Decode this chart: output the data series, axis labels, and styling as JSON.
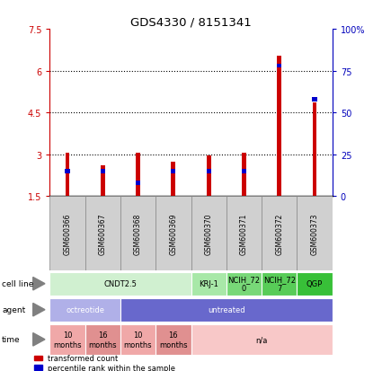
{
  "title": "GDS4330 / 8151341",
  "samples": [
    "GSM600366",
    "GSM600367",
    "GSM600368",
    "GSM600369",
    "GSM600370",
    "GSM600371",
    "GSM600372",
    "GSM600373"
  ],
  "transformed_counts": [
    3.05,
    2.6,
    3.05,
    2.75,
    2.95,
    3.05,
    6.55,
    4.85
  ],
  "percentile_ranks": [
    15,
    15,
    8,
    15,
    15,
    15,
    78,
    58
  ],
  "ylim_left": [
    1.5,
    7.5
  ],
  "ylim_right": [
    0,
    100
  ],
  "yticks_left": [
    1.5,
    3.0,
    4.5,
    6.0,
    7.5
  ],
  "yticks_right": [
    0,
    25,
    50,
    75,
    100
  ],
  "ytick_labels_left": [
    "1.5",
    "3",
    "4.5",
    "6",
    "7.5"
  ],
  "ytick_labels_right": [
    "0",
    "25",
    "50",
    "75",
    "100%"
  ],
  "left_axis_color": "#cc0000",
  "right_axis_color": "#0000bb",
  "bar_color_red": "#cc0000",
  "bar_color_blue": "#0000cc",
  "bar_bottom": 1.5,
  "grid_lines": [
    3.0,
    4.5,
    6.0
  ],
  "bar_width": 0.12,
  "cell_line_label": "cell line",
  "agent_label": "agent",
  "time_label": "time",
  "cell_lines": [
    {
      "text": "CNDT2.5",
      "start": 0,
      "end": 4,
      "color": "#d0f0d0"
    },
    {
      "text": "KRJ-1",
      "start": 4,
      "end": 5,
      "color": "#a8e8a8"
    },
    {
      "text": "NCIH_72\n0",
      "start": 5,
      "end": 6,
      "color": "#78d878"
    },
    {
      "text": "NCIH_72\n7",
      "start": 6,
      "end": 7,
      "color": "#58cc58"
    },
    {
      "text": "QGP",
      "start": 7,
      "end": 8,
      "color": "#38c038"
    }
  ],
  "agents": [
    {
      "text": "octreotide",
      "start": 0,
      "end": 2,
      "color": "#b0b0e8"
    },
    {
      "text": "untreated",
      "start": 2,
      "end": 8,
      "color": "#6868cc"
    }
  ],
  "times": [
    {
      "text": "10\nmonths",
      "start": 0,
      "end": 1,
      "color": "#f0a8a8"
    },
    {
      "text": "16\nmonths",
      "start": 1,
      "end": 2,
      "color": "#e09090"
    },
    {
      "text": "10\nmonths",
      "start": 2,
      "end": 3,
      "color": "#f0a8a8"
    },
    {
      "text": "16\nmonths",
      "start": 3,
      "end": 4,
      "color": "#e09090"
    },
    {
      "text": "n/a",
      "start": 4,
      "end": 8,
      "color": "#f8c8c8"
    }
  ],
  "label_color_cell": "cell line",
  "label_color_agent": "agent",
  "label_color_time": "time",
  "legend_red": "transformed count",
  "legend_blue": "percentile rank within the sample",
  "sample_box_color": "#d0d0d0",
  "sample_box_edge": "#888888"
}
